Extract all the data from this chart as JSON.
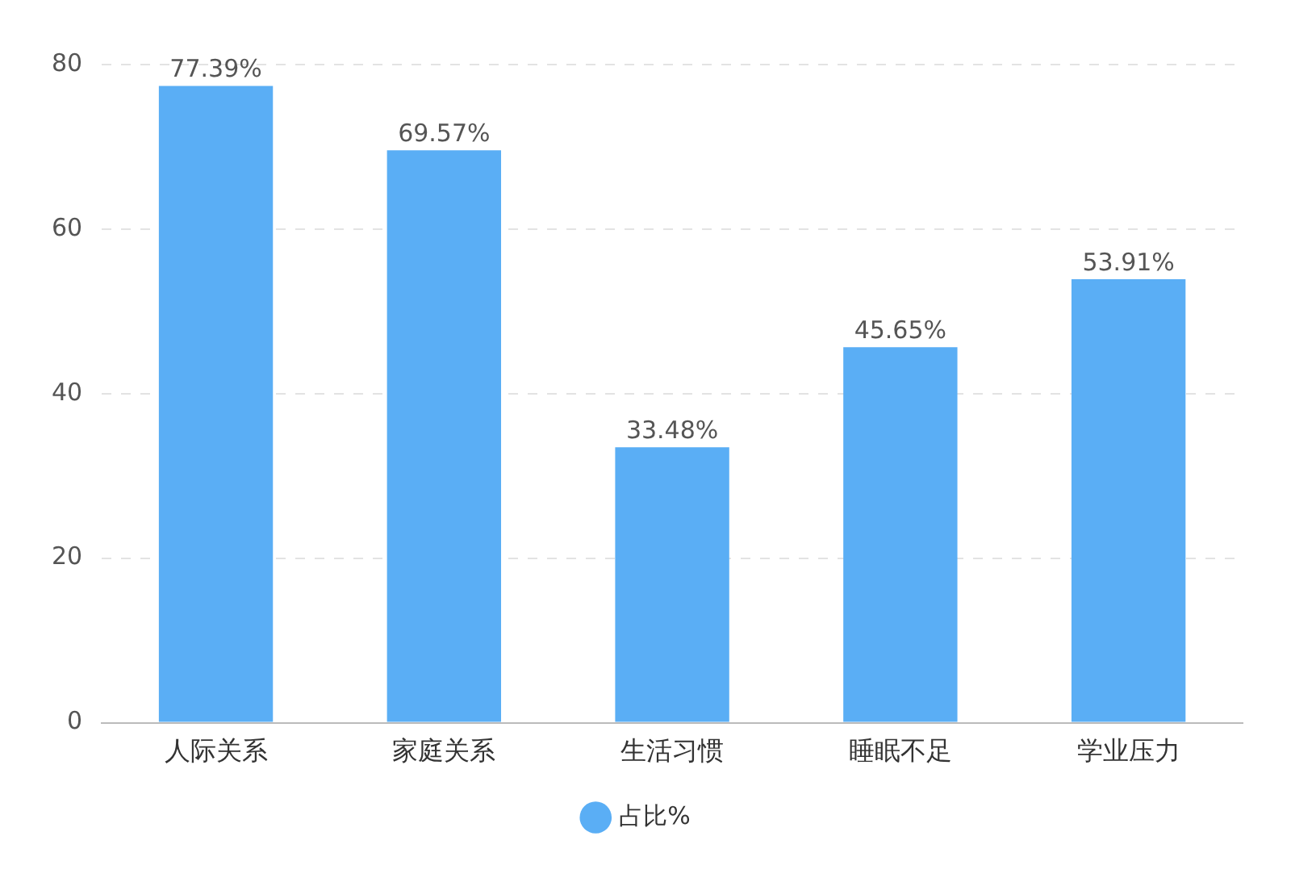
{
  "chart_data": {
    "type": "bar",
    "categories": [
      "人际关系",
      "家庭关系",
      "生活习惯",
      "睡眠不足",
      "学业压力"
    ],
    "series": [
      {
        "name": "占比%",
        "color": "#5aaef5",
        "values": [
          77.39,
          69.57,
          33.48,
          45.65,
          53.91
        ],
        "value_labels": [
          "77.39%",
          "69.57%",
          "33.48%",
          "45.65%",
          "53.91%"
        ]
      }
    ],
    "ylim": [
      0,
      80
    ],
    "yticks": [
      0,
      20,
      40,
      60,
      80
    ],
    "grid": "y",
    "legend": "bottom"
  }
}
